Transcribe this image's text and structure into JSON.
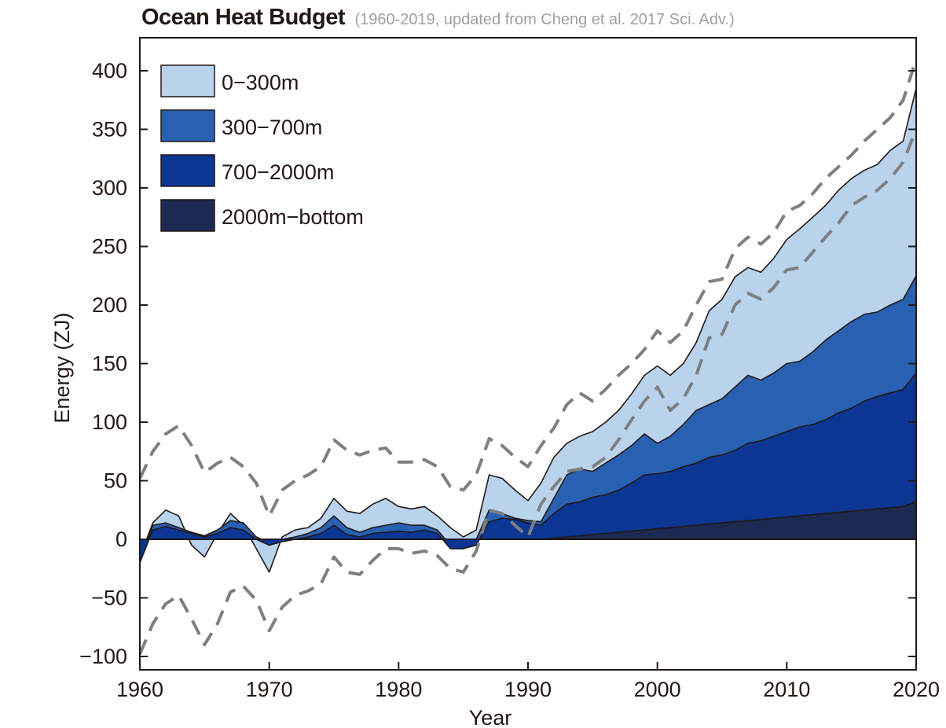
{
  "chart_data": {
    "type": "area",
    "title": "Ocean Heat Budget",
    "subtitle": "(1960-2019, updated from Cheng et al. 2017 Sci. Adv.)",
    "xlabel": "Year",
    "ylabel": "Energy (ZJ)",
    "xlim": [
      1960,
      2020
    ],
    "ylim": [
      -100,
      420
    ],
    "xticks": [
      "1960",
      "1970",
      "1980",
      "1990",
      "2000",
      "2010",
      "2020"
    ],
    "yticks": [
      "400",
      "350",
      "300",
      "250",
      "200",
      "150",
      "100",
      "50",
      "0",
      "−50",
      "−100"
    ],
    "grid": false,
    "legend_position": "top-left",
    "x": [
      1960,
      1961,
      1962,
      1963,
      1964,
      1965,
      1966,
      1967,
      1968,
      1969,
      1970,
      1971,
      1972,
      1973,
      1974,
      1975,
      1976,
      1977,
      1978,
      1979,
      1980,
      1981,
      1982,
      1983,
      1984,
      1985,
      1986,
      1987,
      1988,
      1989,
      1990,
      1991,
      1992,
      1993,
      1994,
      1995,
      1996,
      1997,
      1998,
      1999,
      2000,
      2001,
      2002,
      2003,
      2004,
      2005,
      2006,
      2007,
      2008,
      2009,
      2010,
      2011,
      2012,
      2013,
      2014,
      2015,
      2016,
      2017,
      2018,
      2019,
      2020
    ],
    "series": [
      {
        "name": "2000m−bottom",
        "color": "#1c2a52",
        "values": [
          0,
          0,
          0,
          0,
          0,
          0,
          0,
          0,
          0,
          0,
          0,
          0,
          0,
          0,
          0,
          0,
          0,
          0,
          0,
          0,
          0,
          0,
          0,
          0,
          0,
          0,
          0,
          0,
          0,
          0,
          0,
          0,
          1,
          2,
          3,
          4,
          5,
          6,
          7,
          8,
          9,
          10,
          11,
          12,
          13,
          14,
          15,
          16,
          17,
          18,
          19,
          20,
          21,
          22,
          23,
          24,
          25,
          26,
          27,
          28,
          32
        ]
      },
      {
        "name": "700−2000m",
        "color": "#0b3694",
        "values": [
          -20,
          8,
          11,
          8,
          5,
          2,
          5,
          10,
          8,
          0,
          -5,
          -2,
          0,
          2,
          5,
          12,
          4,
          2,
          5,
          6,
          7,
          6,
          8,
          5,
          -8,
          -8,
          -5,
          15,
          18,
          17,
          14,
          12,
          22,
          30,
          32,
          36,
          38,
          42,
          48,
          55,
          56,
          58,
          62,
          65,
          70,
          72,
          76,
          82,
          84,
          88,
          92,
          96,
          98,
          102,
          108,
          112,
          118,
          122,
          125,
          128,
          142
        ]
      },
      {
        "name": "300−700m",
        "color": "#2861b2",
        "values": [
          -20,
          12,
          14,
          10,
          6,
          3,
          8,
          16,
          14,
          2,
          -3,
          0,
          2,
          5,
          10,
          20,
          10,
          6,
          10,
          12,
          14,
          12,
          12,
          8,
          -5,
          -4,
          0,
          25,
          22,
          18,
          16,
          15,
          35,
          55,
          60,
          58,
          65,
          72,
          80,
          90,
          82,
          88,
          98,
          110,
          115,
          120,
          130,
          140,
          136,
          142,
          150,
          152,
          160,
          170,
          178,
          186,
          192,
          194,
          200,
          205,
          225
        ]
      },
      {
        "name": "0−300m",
        "color": "#b9d3ed",
        "values": [
          -15,
          14,
          25,
          20,
          -5,
          -15,
          5,
          22,
          12,
          -8,
          -28,
          2,
          8,
          10,
          18,
          35,
          24,
          22,
          30,
          35,
          28,
          26,
          28,
          20,
          10,
          2,
          8,
          55,
          52,
          42,
          33,
          48,
          70,
          82,
          88,
          92,
          100,
          110,
          124,
          140,
          148,
          140,
          150,
          168,
          195,
          205,
          224,
          232,
          228,
          240,
          256,
          265,
          275,
          285,
          298,
          308,
          315,
          320,
          332,
          340,
          385
        ]
      },
      {
        "name": "upper bound",
        "color": "#7f7f7f",
        "dashed": true,
        "values": [
          52,
          75,
          90,
          97,
          80,
          57,
          65,
          70,
          62,
          48,
          20,
          42,
          50,
          55,
          62,
          85,
          76,
          72,
          76,
          78,
          66,
          66,
          68,
          62,
          45,
          42,
          55,
          86,
          80,
          70,
          62,
          80,
          95,
          115,
          125,
          118,
          128,
          140,
          150,
          162,
          178,
          168,
          178,
          200,
          220,
          222,
          248,
          258,
          252,
          262,
          280,
          285,
          295,
          308,
          318,
          328,
          340,
          350,
          360,
          375,
          410
        ]
      },
      {
        "name": "lower bound",
        "color": "#7f7f7f",
        "dashed": true,
        "values": [
          -98,
          -72,
          -55,
          -48,
          -68,
          -90,
          -72,
          -45,
          -40,
          -52,
          -78,
          -58,
          -48,
          -44,
          -38,
          -15,
          -28,
          -30,
          -18,
          -8,
          -8,
          -12,
          -10,
          -14,
          -25,
          -28,
          -10,
          25,
          22,
          12,
          2,
          30,
          45,
          58,
          60,
          62,
          70,
          85,
          102,
          118,
          130,
          110,
          120,
          140,
          172,
          175,
          200,
          210,
          205,
          215,
          230,
          232,
          245,
          258,
          270,
          285,
          292,
          298,
          308,
          322,
          350
        ]
      }
    ]
  }
}
